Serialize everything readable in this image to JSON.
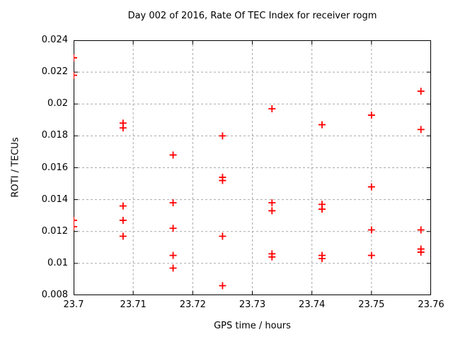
{
  "title": "Day 002 of 2016, Rate Of TEC Index for receiver rogm",
  "chart_data": {
    "type": "scatter",
    "title": "Day 002 of 2016, Rate Of TEC Index for receiver rogm",
    "xlabel": "GPS time / hours",
    "ylabel": "ROTI / TECUs",
    "xlim": [
      23.7,
      23.76
    ],
    "ylim": [
      0.008,
      0.024
    ],
    "xticks": [
      23.7,
      23.71,
      23.72,
      23.73,
      23.74,
      23.75,
      23.76
    ],
    "xtick_labels": [
      "23.7",
      "23.71",
      "23.72",
      "23.73",
      "23.74",
      "23.75",
      "23.76"
    ],
    "yticks": [
      0.008,
      0.01,
      0.012,
      0.014,
      0.016,
      0.018,
      0.02,
      0.022,
      0.024
    ],
    "ytick_labels": [
      "0.008",
      "0.01",
      "0.012",
      "0.014",
      "0.016",
      "0.018",
      "0.02",
      "0.022",
      "0.024"
    ],
    "grid": true,
    "legend": "none",
    "marker": "plus",
    "marker_size": 10,
    "series_name": "ROTI",
    "points": [
      [
        23.7,
        0.0229
      ],
      [
        23.7,
        0.0218
      ],
      [
        23.7,
        0.0127
      ],
      [
        23.7,
        0.0123
      ],
      [
        23.7083,
        0.0188
      ],
      [
        23.7083,
        0.0185
      ],
      [
        23.7083,
        0.0136
      ],
      [
        23.7083,
        0.0127
      ],
      [
        23.7083,
        0.0117
      ],
      [
        23.7167,
        0.0168
      ],
      [
        23.7167,
        0.0138
      ],
      [
        23.7167,
        0.0122
      ],
      [
        23.7167,
        0.0105
      ],
      [
        23.7167,
        0.0097
      ],
      [
        23.725,
        0.018
      ],
      [
        23.725,
        0.0154
      ],
      [
        23.725,
        0.0152
      ],
      [
        23.725,
        0.0117
      ],
      [
        23.725,
        0.0086
      ],
      [
        23.7333,
        0.0197
      ],
      [
        23.7333,
        0.0138
      ],
      [
        23.7333,
        0.0133
      ],
      [
        23.7333,
        0.0106
      ],
      [
        23.7333,
        0.0104
      ],
      [
        23.7417,
        0.0187
      ],
      [
        23.7417,
        0.0137
      ],
      [
        23.7417,
        0.0134
      ],
      [
        23.7417,
        0.0105
      ],
      [
        23.7417,
        0.0103
      ],
      [
        23.75,
        0.0193
      ],
      [
        23.75,
        0.0148
      ],
      [
        23.75,
        0.0121
      ],
      [
        23.75,
        0.0105
      ],
      [
        23.7583,
        0.0208
      ],
      [
        23.7583,
        0.0184
      ],
      [
        23.7583,
        0.0121
      ],
      [
        23.7583,
        0.0109
      ],
      [
        23.7583,
        0.0107
      ]
    ],
    "colors": {
      "marker": "#ff0000",
      "grid": "#a8a8a8",
      "axis": "#000000",
      "text": "#000000",
      "background": "#ffffff"
    }
  }
}
